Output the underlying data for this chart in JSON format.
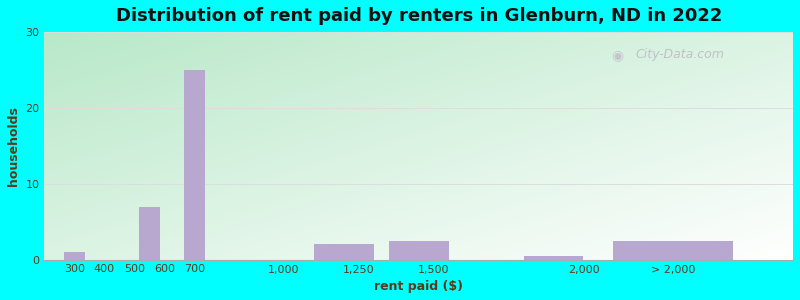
{
  "title": "Distribution of rent paid by renters in Glenburn, ND in 2022",
  "xlabel": "rent paid ($)",
  "ylabel": "households",
  "bar_positions": [
    300,
    450,
    550,
    650,
    700,
    900,
    1200,
    1450,
    1900,
    2300
  ],
  "bar_labels": [
    "300",
    "400",
    "500",
    "600",
    "700",
    "1,000",
    "1,250",
    "1,500",
    "2,000",
    "> 2,000"
  ],
  "tick_positions": [
    300,
    400,
    500,
    600,
    700,
    1000,
    1250,
    1500,
    2000,
    2300
  ],
  "values": [
    1,
    0,
    7,
    0,
    25,
    0,
    2,
    2.5,
    0.5,
    2.5
  ],
  "bar_widths": [
    70,
    70,
    70,
    70,
    70,
    200,
    200,
    200,
    200,
    400
  ],
  "bar_color": "#b8a8cf",
  "ylim": [
    0,
    30
  ],
  "xlim": [
    200,
    2700
  ],
  "yticks": [
    0,
    10,
    20,
    30
  ],
  "outer_bg": "#00ffff",
  "title_fontsize": 13,
  "axis_label_fontsize": 9,
  "tick_fontsize": 8,
  "title_color": "#111111",
  "label_color": "#5a3a1a",
  "watermark_text": "City-Data.com",
  "watermark_color": "#c0bcc8",
  "grid_color": "#dddddd",
  "bg_colors": [
    "#b8e8c8",
    "#ffffff"
  ]
}
